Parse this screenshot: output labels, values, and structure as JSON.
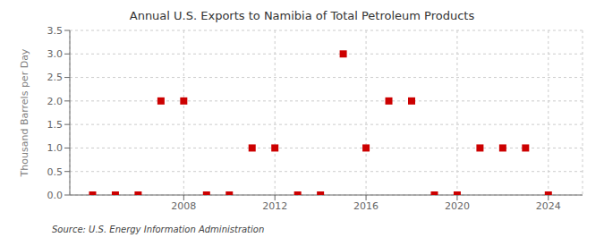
{
  "chart_data": {
    "type": "scatter",
    "title": "Annual U.S. Exports to Namibia of Total Petroleum Products",
    "y_label": "Thousand Barrels per Day",
    "annotations": [
      "Source: U.S. Energy Information Administration"
    ],
    "x": [
      2004,
      2005,
      2006,
      2007,
      2008,
      2009,
      2010,
      2011,
      2012,
      2013,
      2014,
      2015,
      2016,
      2017,
      2018,
      2019,
      2020,
      2021,
      2022,
      2023,
      2024
    ],
    "values": [
      0,
      0,
      0,
      2,
      2,
      0,
      0,
      1,
      1,
      0,
      0,
      3,
      1,
      2,
      2,
      0,
      0,
      1,
      1,
      1,
      0
    ],
    "color": "#cc0000",
    "marker": "square",
    "xlim": [
      2003.0,
      2025.5
    ],
    "ylim": [
      0,
      3.5
    ],
    "xticks": [
      2008,
      2012,
      2016,
      2020,
      2024
    ],
    "yticks": [
      {
        "value": 0,
        "label": "0.0"
      },
      0.5,
      {
        "value": 1,
        "label": "1.0"
      },
      1.5,
      {
        "value": 2,
        "label": "2.0"
      },
      2.5,
      {
        "value": 3,
        "label": "3.0"
      },
      3.5
    ],
    "grid": true
  }
}
